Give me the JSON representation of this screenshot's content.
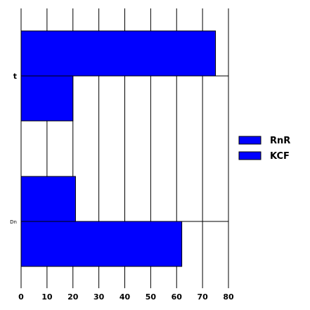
{
  "chart_data": {
    "type": "bar",
    "orientation": "horizontal",
    "categories": [
      "t",
      "Dn"
    ],
    "series": [
      {
        "name": "RnR",
        "values": [
          75,
          21
        ],
        "color": "#0000ff"
      },
      {
        "name": "KCF",
        "values": [
          20,
          62
        ],
        "color": "#0000ff"
      }
    ],
    "xlim": [
      0,
      80
    ],
    "xticks": [
      0,
      10,
      20,
      30,
      40,
      50,
      60,
      70,
      80
    ],
    "grid": "vertical",
    "legend": "right",
    "title": "",
    "xlabel": "",
    "ylabel": ""
  }
}
